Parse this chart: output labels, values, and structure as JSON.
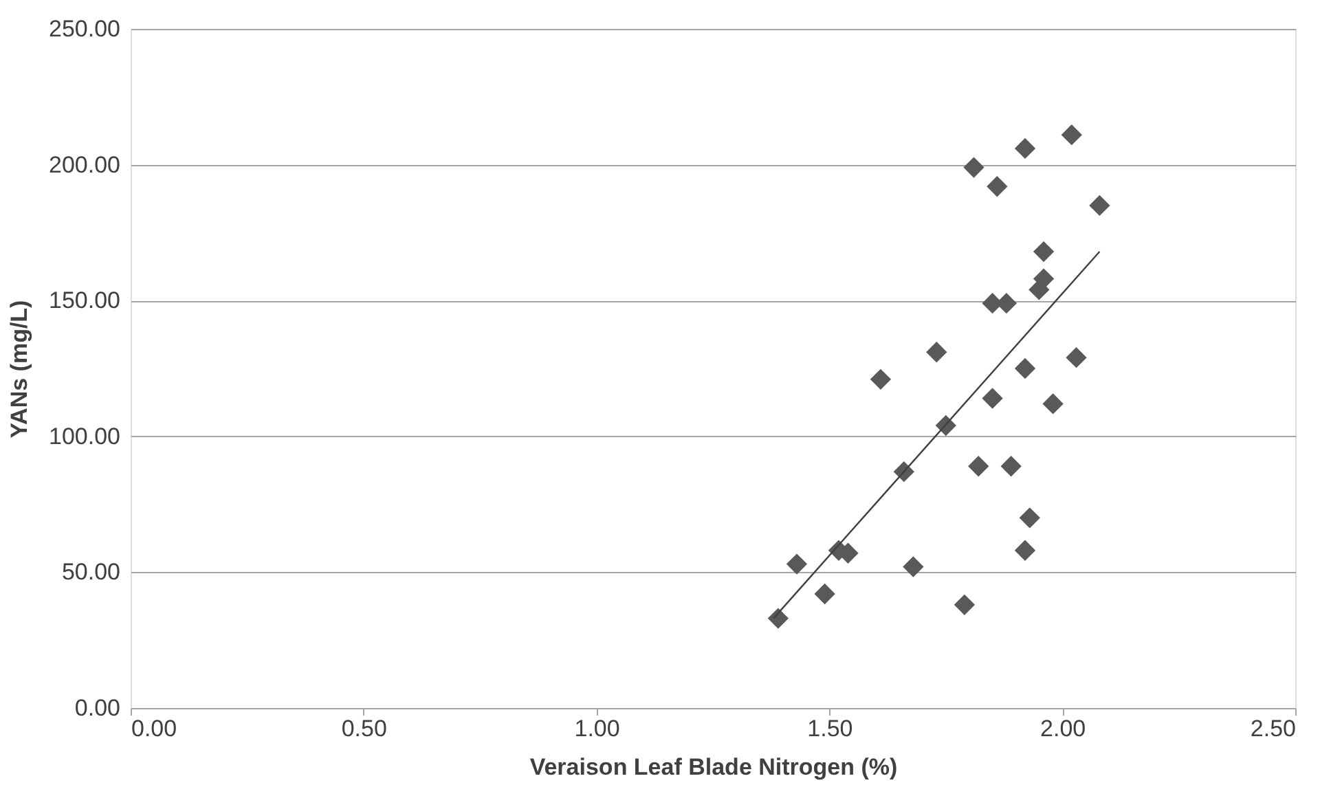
{
  "chart_data": {
    "type": "scatter",
    "xlabel": "Veraison Leaf Blade Nitrogen (%)",
    "ylabel": "YANs (mg/L)",
    "xlim": [
      0,
      2.5
    ],
    "ylim": [
      0,
      250
    ],
    "xticks": [
      {
        "value": 0,
        "label": "0.00"
      },
      {
        "value": 0.5,
        "label": "0.50"
      },
      {
        "value": 1,
        "label": "1.00"
      },
      {
        "value": 1.5,
        "label": "1.50"
      },
      {
        "value": 2,
        "label": "2.00"
      },
      {
        "value": 2.5,
        "label": "2.50"
      }
    ],
    "yticks": [
      {
        "value": 0,
        "label": "0.00"
      },
      {
        "value": 50,
        "label": "50.00"
      },
      {
        "value": 100,
        "label": "100.00"
      },
      {
        "value": 150,
        "label": "150.00"
      },
      {
        "value": 200,
        "label": "200.00"
      },
      {
        "value": 250,
        "label": "250.00"
      }
    ],
    "grid": "y",
    "legend": false,
    "series": [
      {
        "type": "scatter",
        "marker": "diamond",
        "color": "#595959",
        "x": [
          1.39,
          1.43,
          1.49,
          1.52,
          1.54,
          1.68,
          1.79,
          1.61,
          1.73,
          1.66,
          1.75,
          1.82,
          1.89,
          1.93,
          1.92,
          1.85,
          1.92,
          1.98,
          2.03,
          1.85,
          1.88,
          1.95,
          1.96,
          1.81,
          1.86,
          1.92,
          2.02,
          2.08,
          1.96
        ],
        "values": [
          33,
          53,
          42,
          58,
          57,
          52,
          38,
          121,
          131,
          87,
          104,
          89,
          89,
          70,
          58,
          114,
          125,
          112,
          129,
          149,
          149,
          154,
          158,
          199,
          192,
          206,
          211,
          185,
          168
        ]
      },
      {
        "type": "line",
        "color": "#404040",
        "x": [
          1.38,
          2.08
        ],
        "values": [
          33,
          168
        ]
      }
    ]
  }
}
